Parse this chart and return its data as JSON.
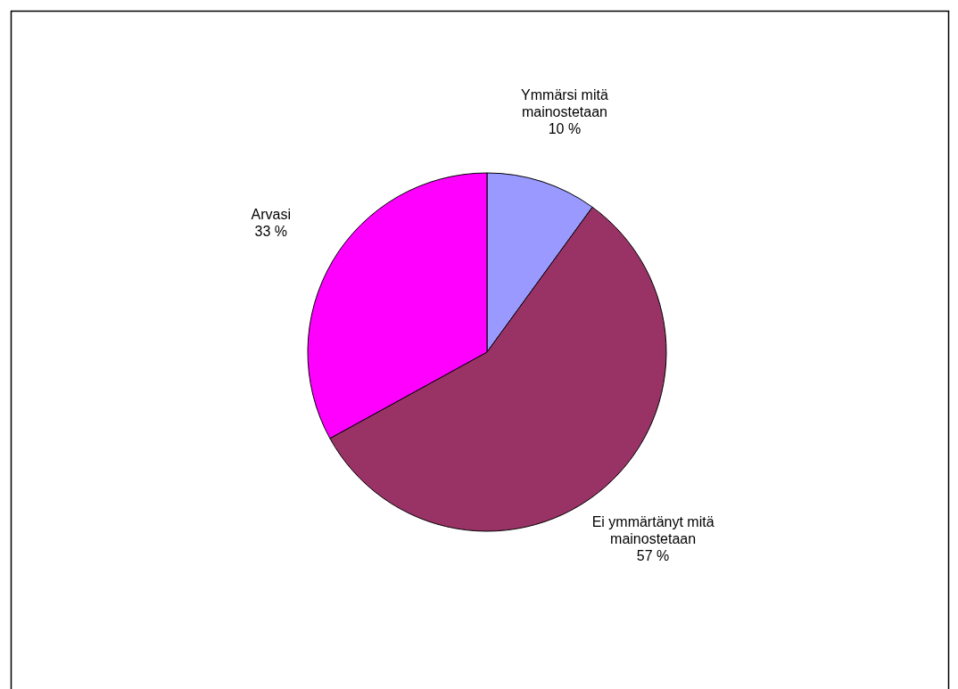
{
  "chart_data": {
    "type": "pie",
    "categories": [
      "Ymmärsi mitä mainostetaan",
      "Ei ymmärtänyt mitä mainostetaan",
      "Arvasi"
    ],
    "values": [
      10,
      57,
      33
    ],
    "colors": [
      "#9999ff",
      "#993366",
      "#ff00ff"
    ],
    "value_labels": [
      "10 %",
      "57 %",
      "33 %"
    ]
  }
}
